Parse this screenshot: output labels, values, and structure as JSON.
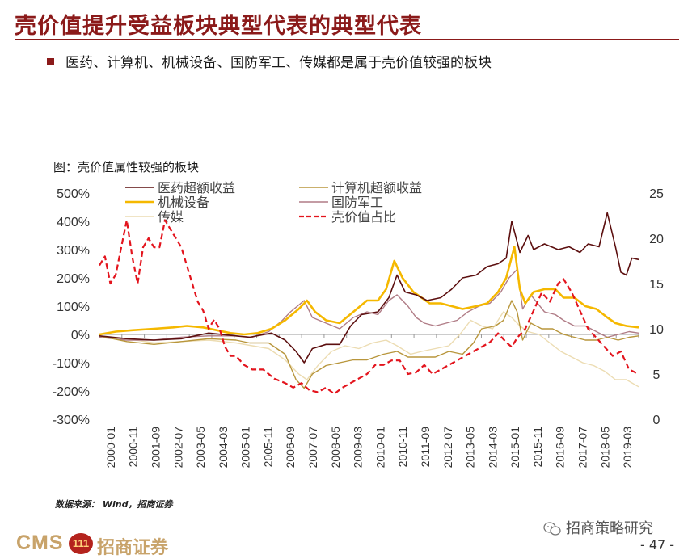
{
  "header": {
    "title": "壳价值提升受益板块典型代表的典型代表",
    "bullet": "医药、计算机、机械设备、国防军工、传媒都是属于壳价值较强的板块"
  },
  "figure": {
    "caption": "图：壳价值属性较强的板块",
    "source": "数据来源： Wind，招商证券"
  },
  "footer": {
    "logo_text": "CMS",
    "logo_badge": "111",
    "logo_cn": "招商证券",
    "wechat_account": "招商策略研究",
    "page_number": "- 47 -"
  },
  "chart_data": {
    "type": "line",
    "title": "壳价值属性较强的板块",
    "colors": {
      "医药超额收益": "#5c0f0f",
      "计算机超额收益": "#b8963c",
      "机械设备": "#f5b800",
      "国防军工": "#b07c86",
      "传媒": "#ecdcb2",
      "壳价值占比": "#e3141d"
    },
    "x_ticks": [
      "2000-01",
      "2000-11",
      "2001-09",
      "2002-07",
      "2003-05",
      "2004-03",
      "2005-01",
      "2005-11",
      "2006-09",
      "2007-07",
      "2008-05",
      "2009-03",
      "2010-01",
      "2010-11",
      "2011-09",
      "2012-07",
      "2013-05",
      "2014-03",
      "2015-01",
      "2015-11",
      "2016-09",
      "2017-07",
      "2018-05",
      "2019-03"
    ],
    "x_range": [
      2000.0,
      2019.75
    ],
    "y_left": {
      "min": -300,
      "max": 500,
      "step": 100,
      "suffix": "%"
    },
    "y_right": {
      "min": 0,
      "max": 25,
      "step": 5
    },
    "series": [
      {
        "name": "医药超额收益",
        "axis": "left",
        "dash": false,
        "width": 1.6,
        "points": [
          [
            2000.0,
            -5
          ],
          [
            2001.0,
            -15
          ],
          [
            2002.0,
            -20
          ],
          [
            2003.0,
            -15
          ],
          [
            2004.0,
            5
          ],
          [
            2005.0,
            -5
          ],
          [
            2005.5,
            -10
          ],
          [
            2006.3,
            5
          ],
          [
            2006.8,
            -20
          ],
          [
            2007.2,
            -60
          ],
          [
            2007.5,
            -100
          ],
          [
            2007.8,
            -50
          ],
          [
            2008.3,
            -35
          ],
          [
            2008.8,
            -35
          ],
          [
            2009.2,
            30
          ],
          [
            2009.6,
            70
          ],
          [
            2010.2,
            80
          ],
          [
            2010.6,
            130
          ],
          [
            2010.9,
            210
          ],
          [
            2011.2,
            150
          ],
          [
            2011.6,
            140
          ],
          [
            2012.0,
            120
          ],
          [
            2012.5,
            130
          ],
          [
            2012.9,
            160
          ],
          [
            2013.3,
            200
          ],
          [
            2013.8,
            210
          ],
          [
            2014.2,
            240
          ],
          [
            2014.6,
            250
          ],
          [
            2014.9,
            270
          ],
          [
            2015.1,
            400
          ],
          [
            2015.4,
            290
          ],
          [
            2015.7,
            350
          ],
          [
            2015.9,
            300
          ],
          [
            2016.3,
            320
          ],
          [
            2016.8,
            300
          ],
          [
            2017.2,
            310
          ],
          [
            2017.6,
            290
          ],
          [
            2017.9,
            320
          ],
          [
            2018.3,
            310
          ],
          [
            2018.6,
            430
          ],
          [
            2018.9,
            310
          ],
          [
            2019.1,
            220
          ],
          [
            2019.3,
            210
          ],
          [
            2019.5,
            270
          ],
          [
            2019.75,
            265
          ]
        ]
      },
      {
        "name": "计算机超额收益",
        "axis": "left",
        "dash": false,
        "width": 1.4,
        "points": [
          [
            2000.0,
            -5
          ],
          [
            2001.0,
            -25
          ],
          [
            2002.0,
            -35
          ],
          [
            2003.0,
            -25
          ],
          [
            2004.0,
            -15
          ],
          [
            2005.0,
            -20
          ],
          [
            2005.5,
            -30
          ],
          [
            2006.2,
            -30
          ],
          [
            2006.8,
            -70
          ],
          [
            2007.2,
            -160
          ],
          [
            2007.5,
            -190
          ],
          [
            2007.8,
            -140
          ],
          [
            2008.3,
            -110
          ],
          [
            2008.8,
            -100
          ],
          [
            2009.3,
            -90
          ],
          [
            2009.8,
            -90
          ],
          [
            2010.4,
            -70
          ],
          [
            2010.9,
            -60
          ],
          [
            2011.3,
            -80
          ],
          [
            2011.8,
            -80
          ],
          [
            2012.3,
            -80
          ],
          [
            2012.8,
            -60
          ],
          [
            2013.3,
            -70
          ],
          [
            2013.7,
            -30
          ],
          [
            2014.0,
            20
          ],
          [
            2014.5,
            30
          ],
          [
            2014.8,
            50
          ],
          [
            2015.1,
            120
          ],
          [
            2015.3,
            80
          ],
          [
            2015.5,
            -20
          ],
          [
            2015.8,
            40
          ],
          [
            2016.2,
            20
          ],
          [
            2016.6,
            20
          ],
          [
            2017.0,
            0
          ],
          [
            2017.4,
            -10
          ],
          [
            2017.8,
            -20
          ],
          [
            2018.2,
            -20
          ],
          [
            2018.6,
            -10
          ],
          [
            2019.0,
            -20
          ],
          [
            2019.4,
            -10
          ],
          [
            2019.75,
            -5
          ]
        ]
      },
      {
        "name": "机械设备",
        "axis": "left",
        "dash": false,
        "width": 2.6,
        "points": [
          [
            2000.0,
            0
          ],
          [
            2000.6,
            10
          ],
          [
            2001.2,
            15
          ],
          [
            2002.0,
            20
          ],
          [
            2002.7,
            25
          ],
          [
            2003.2,
            30
          ],
          [
            2003.8,
            25
          ],
          [
            2004.3,
            15
          ],
          [
            2004.8,
            5
          ],
          [
            2005.3,
            0
          ],
          [
            2005.8,
            5
          ],
          [
            2006.3,
            20
          ],
          [
            2006.8,
            50
          ],
          [
            2007.3,
            90
          ],
          [
            2007.6,
            120
          ],
          [
            2007.9,
            80
          ],
          [
            2008.3,
            50
          ],
          [
            2008.8,
            40
          ],
          [
            2009.3,
            80
          ],
          [
            2009.8,
            120
          ],
          [
            2010.2,
            120
          ],
          [
            2010.5,
            160
          ],
          [
            2010.8,
            260
          ],
          [
            2011.1,
            200
          ],
          [
            2011.5,
            150
          ],
          [
            2011.8,
            130
          ],
          [
            2012.1,
            110
          ],
          [
            2012.5,
            110
          ],
          [
            2012.9,
            100
          ],
          [
            2013.3,
            90
          ],
          [
            2013.8,
            100
          ],
          [
            2014.2,
            110
          ],
          [
            2014.6,
            150
          ],
          [
            2014.9,
            200
          ],
          [
            2015.2,
            310
          ],
          [
            2015.4,
            160
          ],
          [
            2015.6,
            110
          ],
          [
            2015.9,
            150
          ],
          [
            2016.3,
            160
          ],
          [
            2016.7,
            160
          ],
          [
            2017.0,
            130
          ],
          [
            2017.4,
            130
          ],
          [
            2017.8,
            100
          ],
          [
            2018.2,
            90
          ],
          [
            2018.6,
            60
          ],
          [
            2018.9,
            40
          ],
          [
            2019.3,
            30
          ],
          [
            2019.75,
            25
          ]
        ]
      },
      {
        "name": "国防军工",
        "axis": "left",
        "dash": false,
        "width": 1.4,
        "points": [
          [
            2000.0,
            -10
          ],
          [
            2001.0,
            -20
          ],
          [
            2002.0,
            -20
          ],
          [
            2003.0,
            -10
          ],
          [
            2004.0,
            -5
          ],
          [
            2005.0,
            -5
          ],
          [
            2005.6,
            -10
          ],
          [
            2006.2,
            10
          ],
          [
            2006.7,
            50
          ],
          [
            2007.0,
            80
          ],
          [
            2007.5,
            120
          ],
          [
            2007.8,
            60
          ],
          [
            2008.3,
            40
          ],
          [
            2008.8,
            20
          ],
          [
            2009.3,
            60
          ],
          [
            2009.8,
            80
          ],
          [
            2010.2,
            70
          ],
          [
            2010.6,
            120
          ],
          [
            2010.9,
            140
          ],
          [
            2011.3,
            100
          ],
          [
            2011.6,
            60
          ],
          [
            2011.9,
            40
          ],
          [
            2012.3,
            30
          ],
          [
            2012.7,
            40
          ],
          [
            2013.1,
            50
          ],
          [
            2013.5,
            80
          ],
          [
            2013.9,
            100
          ],
          [
            2014.3,
            110
          ],
          [
            2014.7,
            150
          ],
          [
            2015.0,
            200
          ],
          [
            2015.3,
            230
          ],
          [
            2015.5,
            90
          ],
          [
            2015.8,
            140
          ],
          [
            2016.3,
            80
          ],
          [
            2016.7,
            70
          ],
          [
            2017.0,
            50
          ],
          [
            2017.4,
            30
          ],
          [
            2017.8,
            30
          ],
          [
            2018.2,
            10
          ],
          [
            2018.6,
            -10
          ],
          [
            2019.0,
            0
          ],
          [
            2019.4,
            10
          ],
          [
            2019.75,
            5
          ]
        ]
      },
      {
        "name": "传媒",
        "axis": "left",
        "dash": false,
        "width": 1.4,
        "points": [
          [
            2000.0,
            -5
          ],
          [
            2001.0,
            -15
          ],
          [
            2002.0,
            -30
          ],
          [
            2003.0,
            -25
          ],
          [
            2004.0,
            -20
          ],
          [
            2005.0,
            -30
          ],
          [
            2005.6,
            -40
          ],
          [
            2006.2,
            -50
          ],
          [
            2006.8,
            -90
          ],
          [
            2007.3,
            -140
          ],
          [
            2007.6,
            -160
          ],
          [
            2008.0,
            -110
          ],
          [
            2008.5,
            -60
          ],
          [
            2009.0,
            -40
          ],
          [
            2009.5,
            -50
          ],
          [
            2010.0,
            -30
          ],
          [
            2010.5,
            -20
          ],
          [
            2010.9,
            -40
          ],
          [
            2011.4,
            -70
          ],
          [
            2011.8,
            -60
          ],
          [
            2012.3,
            -50
          ],
          [
            2012.8,
            -40
          ],
          [
            2013.2,
            0
          ],
          [
            2013.6,
            50
          ],
          [
            2014.0,
            30
          ],
          [
            2014.4,
            20
          ],
          [
            2014.8,
            80
          ],
          [
            2015.1,
            60
          ],
          [
            2015.4,
            30
          ],
          [
            2015.7,
            10
          ],
          [
            2016.1,
            0
          ],
          [
            2016.5,
            -30
          ],
          [
            2016.9,
            -60
          ],
          [
            2017.3,
            -80
          ],
          [
            2017.7,
            -100
          ],
          [
            2018.1,
            -110
          ],
          [
            2018.5,
            -130
          ],
          [
            2018.9,
            -160
          ],
          [
            2019.3,
            -160
          ],
          [
            2019.75,
            -185
          ]
        ]
      },
      {
        "name": "壳价值占比",
        "axis": "right",
        "dash": true,
        "width": 2.2,
        "points": [
          [
            2000.0,
            17
          ],
          [
            2000.2,
            18
          ],
          [
            2000.4,
            15
          ],
          [
            2000.6,
            16
          ],
          [
            2000.8,
            19
          ],
          [
            2001.0,
            22
          ],
          [
            2001.2,
            18
          ],
          [
            2001.4,
            15
          ],
          [
            2001.6,
            19
          ],
          [
            2001.8,
            20
          ],
          [
            2002.0,
            19
          ],
          [
            2002.2,
            19
          ],
          [
            2002.4,
            22
          ],
          [
            2002.6,
            21
          ],
          [
            2002.8,
            20
          ],
          [
            2003.0,
            19
          ],
          [
            2003.2,
            17
          ],
          [
            2003.4,
            15
          ],
          [
            2003.6,
            13
          ],
          [
            2003.8,
            12
          ],
          [
            2004.0,
            10
          ],
          [
            2004.2,
            11
          ],
          [
            2004.4,
            10
          ],
          [
            2004.6,
            8
          ],
          [
            2004.8,
            7
          ],
          [
            2005.0,
            7
          ],
          [
            2005.3,
            6
          ],
          [
            2005.6,
            5.5
          ],
          [
            2006.0,
            5.5
          ],
          [
            2006.4,
            4.5
          ],
          [
            2006.8,
            4
          ],
          [
            2007.1,
            3.5
          ],
          [
            2007.4,
            4
          ],
          [
            2007.7,
            3.2
          ],
          [
            2008.0,
            3
          ],
          [
            2008.3,
            3.5
          ],
          [
            2008.6,
            2.8
          ],
          [
            2008.9,
            3.5
          ],
          [
            2009.2,
            4
          ],
          [
            2009.5,
            4.5
          ],
          [
            2009.8,
            5
          ],
          [
            2010.1,
            6
          ],
          [
            2010.4,
            6
          ],
          [
            2010.7,
            6.5
          ],
          [
            2011.0,
            6.5
          ],
          [
            2011.3,
            5
          ],
          [
            2011.6,
            5.2
          ],
          [
            2011.9,
            6
          ],
          [
            2012.2,
            5
          ],
          [
            2012.5,
            5.5
          ],
          [
            2012.8,
            6
          ],
          [
            2013.1,
            6.5
          ],
          [
            2013.4,
            7
          ],
          [
            2013.7,
            7.5
          ],
          [
            2014.0,
            8
          ],
          [
            2014.3,
            8.5
          ],
          [
            2014.6,
            9.5
          ],
          [
            2014.9,
            8.5
          ],
          [
            2015.1,
            8
          ],
          [
            2015.3,
            9
          ],
          [
            2015.6,
            10
          ],
          [
            2015.9,
            12
          ],
          [
            2016.2,
            14
          ],
          [
            2016.5,
            13
          ],
          [
            2016.8,
            15
          ],
          [
            2017.0,
            15.5
          ],
          [
            2017.3,
            14
          ],
          [
            2017.6,
            12
          ],
          [
            2017.9,
            10
          ],
          [
            2018.2,
            9
          ],
          [
            2018.5,
            8
          ],
          [
            2018.8,
            7
          ],
          [
            2019.1,
            7.5
          ],
          [
            2019.4,
            5.5
          ],
          [
            2019.75,
            5
          ]
        ]
      }
    ]
  }
}
